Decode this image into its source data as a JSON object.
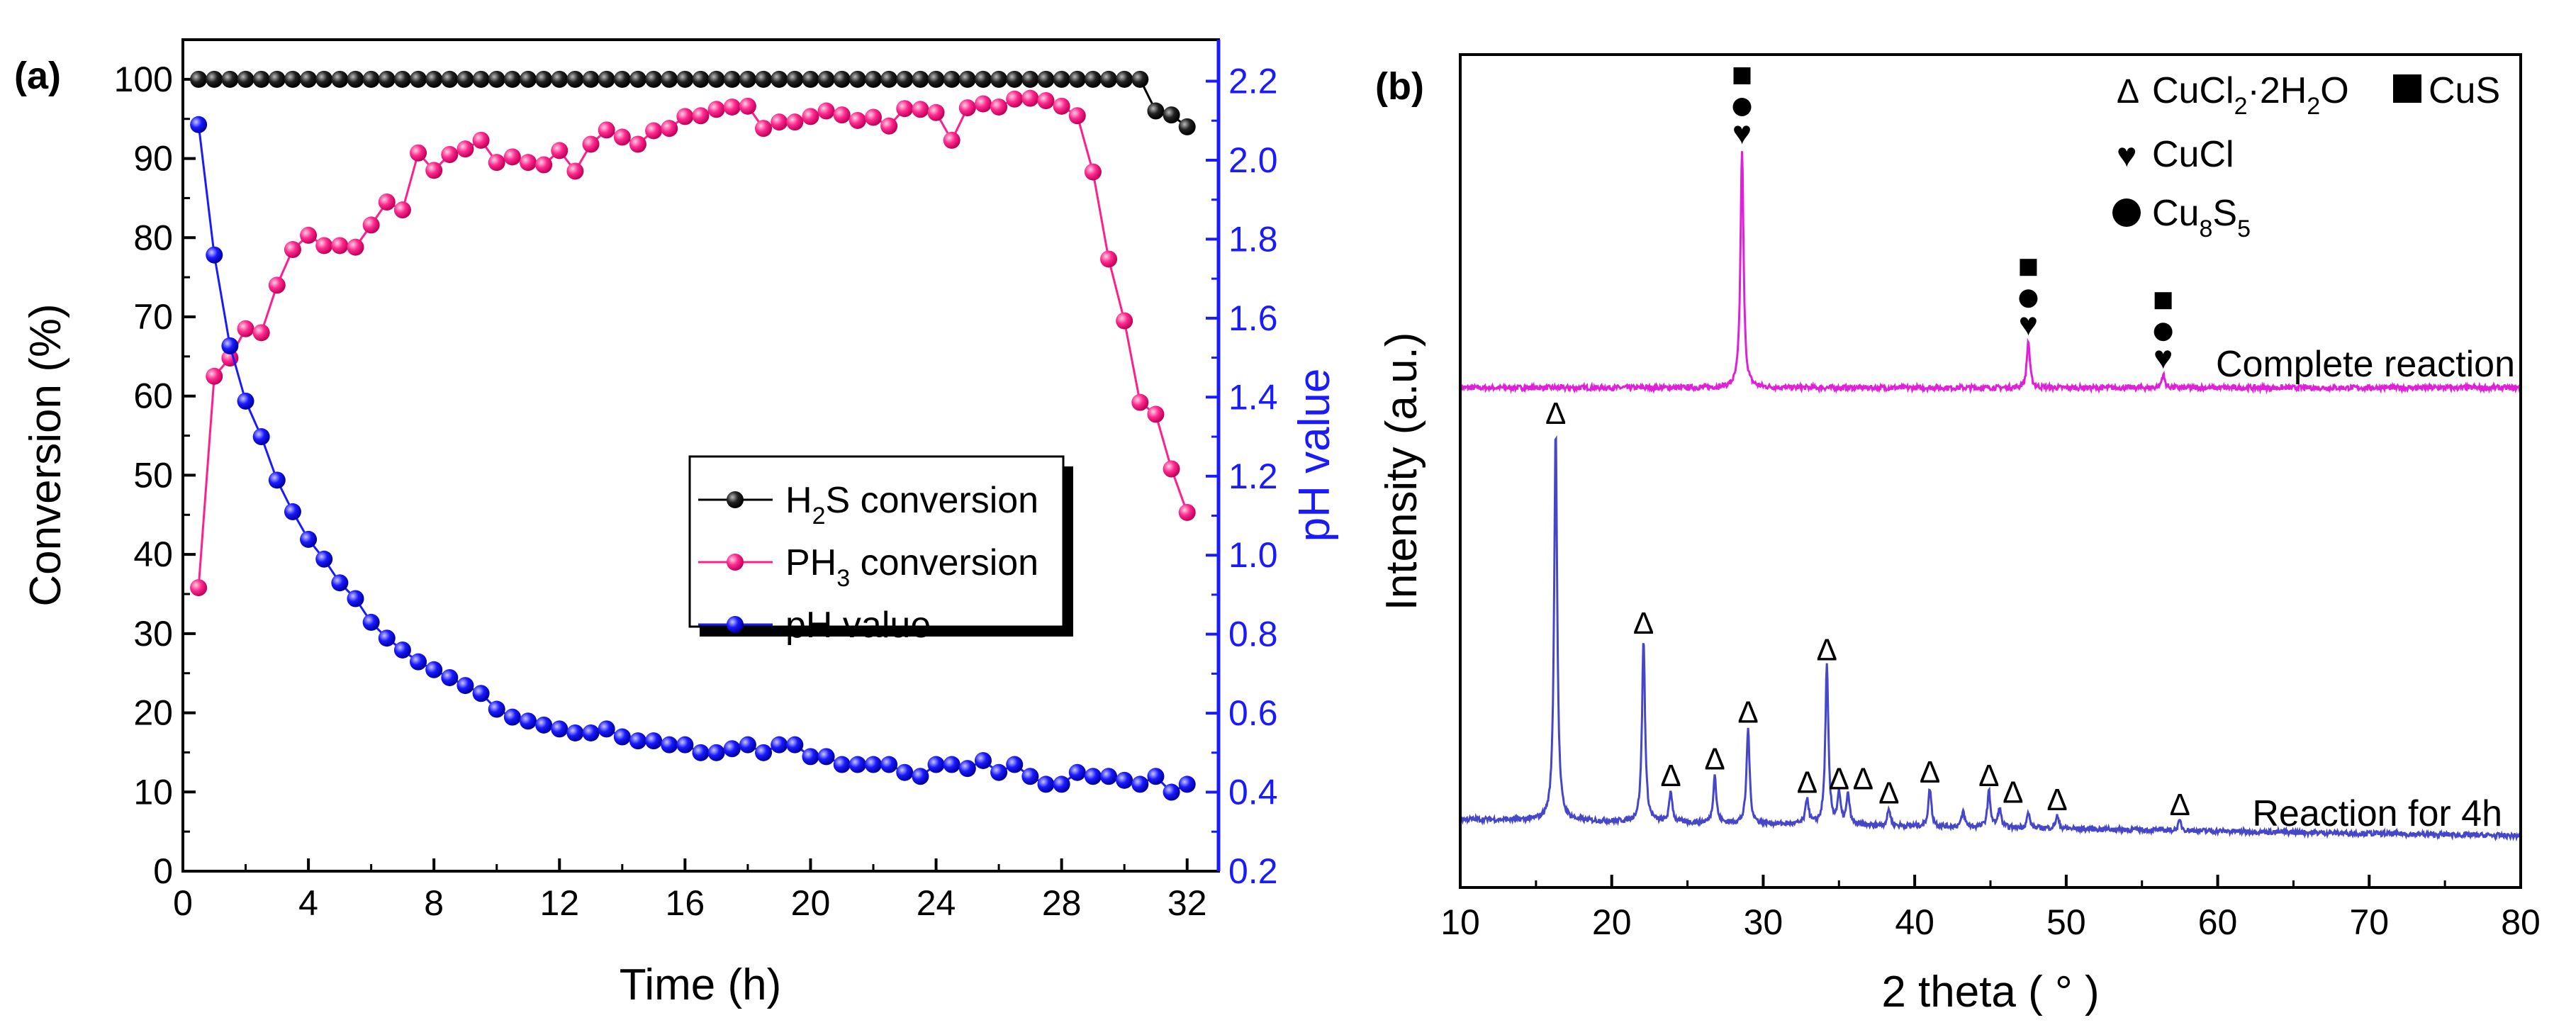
{
  "chart_data": [
    {
      "type": "line",
      "panel_label": "(a)",
      "xlabel": "Time (h)",
      "ylabel": "Conversion (%)",
      "y2label": "pH value",
      "xlim": [
        0,
        33
      ],
      "ylim": [
        0,
        105
      ],
      "y2lim": [
        0.2,
        2.305
      ],
      "xticks": [
        0,
        4,
        8,
        12,
        16,
        20,
        24,
        28,
        32
      ],
      "yticks": [
        0,
        10,
        20,
        30,
        40,
        50,
        60,
        70,
        80,
        90,
        100
      ],
      "y2ticks": [
        "0.2",
        "0.4",
        "0.6",
        "0.8",
        "1.0",
        "1.2",
        "1.4",
        "1.6",
        "1.8",
        "2.0",
        "2.2"
      ],
      "grid": false,
      "legend_placement": "center-right",
      "x": [
        0.5,
        1,
        1.5,
        2,
        2.5,
        3,
        3.5,
        4,
        4.5,
        5,
        5.5,
        6,
        6.5,
        7,
        7.5,
        8,
        8.5,
        9,
        9.5,
        10,
        10.5,
        11,
        11.5,
        12,
        12.5,
        13,
        13.5,
        14,
        14.5,
        15,
        15.5,
        16,
        16.5,
        17,
        17.5,
        18,
        18.5,
        19,
        19.5,
        20,
        20.5,
        21,
        21.5,
        22,
        22.5,
        23,
        23.5,
        24,
        24.5,
        25,
        25.5,
        26,
        26.5,
        27,
        27.5,
        28,
        28.5,
        29,
        29.5,
        30,
        30.5,
        31,
        31.5,
        32
      ],
      "series": [
        {
          "name": "H2S conversion",
          "legend": {
            "pre": "H",
            "sub": "2",
            "post": "S conversion"
          },
          "axis": "left",
          "color": "#000000",
          "values": [
            100,
            100,
            100,
            100,
            100,
            100,
            100,
            100,
            100,
            100,
            100,
            100,
            100,
            100,
            100,
            100,
            100,
            100,
            100,
            100,
            100,
            100,
            100,
            100,
            100,
            100,
            100,
            100,
            100,
            100,
            100,
            100,
            100,
            100,
            100,
            100,
            100,
            100,
            100,
            100,
            100,
            100,
            100,
            100,
            100,
            100,
            100,
            100,
            100,
            100,
            100,
            100,
            100,
            100,
            100,
            100,
            100,
            100,
            100,
            100,
            100,
            96,
            95.5,
            94
          ]
        },
        {
          "name": "PH3 conversion",
          "legend": {
            "pre": "PH",
            "sub": "3",
            "post": " conversion"
          },
          "axis": "left",
          "color": "#ff1e8c",
          "values": [
            35.8,
            62.5,
            64.8,
            68.5,
            68,
            74,
            78.5,
            80.3,
            79,
            79,
            78.8,
            81.6,
            84.5,
            83.5,
            90.7,
            88.5,
            90.5,
            91.2,
            92.3,
            89.5,
            90.2,
            89.5,
            89.2,
            91,
            88.4,
            91.8,
            93.6,
            92.7,
            91.8,
            93.5,
            93.8,
            95.3,
            95.4,
            96.2,
            96.5,
            96.6,
            93.8,
            94.6,
            94.6,
            95.3,
            96,
            95.5,
            94.8,
            95.2,
            94.1,
            96.3,
            96.2,
            95.8,
            92.3,
            96.4,
            96.9,
            96.5,
            97.5,
            97.6,
            97.3,
            96.6,
            95.4,
            88.3,
            77.3,
            69.5,
            59.2,
            57.7,
            50.8,
            45.3
          ]
        },
        {
          "name": "pH value",
          "legend": {
            "pre": "pH value",
            "sub": "",
            "post": ""
          },
          "axis": "right",
          "color": "#1a1aff",
          "values": [
            2.09,
            1.76,
            1.53,
            1.39,
            1.3,
            1.19,
            1.11,
            1.04,
            0.99,
            0.93,
            0.89,
            0.83,
            0.79,
            0.76,
            0.73,
            0.71,
            0.69,
            0.67,
            0.65,
            0.61,
            0.59,
            0.58,
            0.57,
            0.56,
            0.55,
            0.55,
            0.56,
            0.54,
            0.53,
            0.53,
            0.52,
            0.52,
            0.5,
            0.5,
            0.51,
            0.52,
            0.5,
            0.52,
            0.52,
            0.49,
            0.49,
            0.47,
            0.47,
            0.47,
            0.47,
            0.45,
            0.44,
            0.47,
            0.47,
            0.46,
            0.48,
            0.45,
            0.47,
            0.44,
            0.42,
            0.42,
            0.45,
            0.44,
            0.44,
            0.43,
            0.42,
            0.44,
            0.4,
            0.42
          ]
        }
      ]
    },
    {
      "type": "line",
      "panel_label": "(b)",
      "xlabel": "2 theta ( ° )",
      "ylabel": "Intensity (a.u.)",
      "xlim": [
        10,
        80
      ],
      "ylim": [
        0,
        100
      ],
      "xticks": [
        10,
        20,
        30,
        40,
        50,
        60,
        70,
        80
      ],
      "grid": false,
      "legend_placement": "top-right",
      "legend": [
        {
          "symbol": "Δ",
          "pre": "CuCl",
          "sub": "2",
          "mid": "·2H",
          "sub2": "2",
          "post": "O"
        },
        {
          "symbol": "■",
          "pre": "CuS",
          "sub": "",
          "mid": "",
          "sub2": "",
          "post": ""
        },
        {
          "symbol": "♥",
          "pre": "CuCl",
          "sub": "",
          "mid": "",
          "sub2": "",
          "post": ""
        },
        {
          "symbol": "●",
          "pre": "Cu",
          "sub": "8",
          "mid": "S",
          "sub2": "5",
          "post": ""
        }
      ],
      "series": [
        {
          "name": "Complete reaction",
          "color": "#e020d8",
          "baseline": [
            60.0,
            60.0
          ],
          "peaks": [
            {
              "x": 28.6,
              "intensity": 88.6,
              "markers": [
                "■",
                "●",
                "♥"
              ]
            },
            {
              "x": 47.5,
              "intensity": 65.6,
              "markers": [
                "■",
                "●",
                "♥"
              ]
            },
            {
              "x": 56.4,
              "intensity": 61.6,
              "markers": [
                "■",
                "●",
                "♥"
              ]
            }
          ]
        },
        {
          "name": "Reaction for 4h",
          "color": "#4646c8",
          "baseline": [
            8.2,
            6.2
          ],
          "peaks": [
            {
              "x": 16.3,
              "intensity": 55.0,
              "markers": [
                "Δ"
              ]
            },
            {
              "x": 22.1,
              "intensity": 29.8,
              "markers": [
                "Δ"
              ]
            },
            {
              "x": 23.9,
              "intensity": 11.5,
              "markers": [
                "Δ"
              ]
            },
            {
              "x": 26.8,
              "intensity": 13.5,
              "markers": [
                "Δ"
              ]
            },
            {
              "x": 29.0,
              "intensity": 19.1,
              "markers": [
                "Δ"
              ]
            },
            {
              "x": 32.9,
              "intensity": 10.7,
              "markers": [
                "Δ"
              ]
            },
            {
              "x": 34.2,
              "intensity": 26.6,
              "markers": [
                "Δ"
              ]
            },
            {
              "x": 35.0,
              "intensity": 11.1,
              "markers": [
                "Δ"
              ]
            },
            {
              "x": 35.6,
              "intensity": 11.1,
              "markers": [
                "Δ"
              ]
            },
            {
              "x": 38.3,
              "intensity": 9.4,
              "markers": [
                "Δ"
              ]
            },
            {
              "x": 41.0,
              "intensity": 11.9,
              "markers": [
                "Δ"
              ]
            },
            {
              "x": 43.2,
              "intensity": 9.1,
              "markers": []
            },
            {
              "x": 44.9,
              "intensity": 11.5,
              "markers": [
                "Δ"
              ]
            },
            {
              "x": 45.6,
              "intensity": 9.5,
              "markers": [
                "Δ"
              ]
            },
            {
              "x": 47.5,
              "intensity": 8.9,
              "markers": []
            },
            {
              "x": 49.4,
              "intensity": 8.6,
              "markers": [
                "Δ"
              ]
            },
            {
              "x": 57.5,
              "intensity": 8.0,
              "markers": [
                "Δ"
              ]
            }
          ]
        }
      ]
    }
  ]
}
